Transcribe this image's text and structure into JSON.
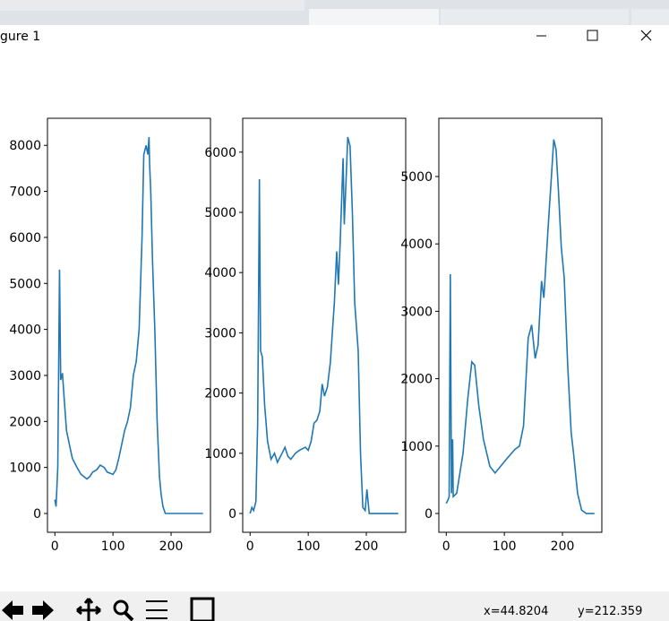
{
  "window": {
    "title": "gure 1",
    "status_x": "x=44.8204",
    "status_y": "y=212.359"
  },
  "chart_data": [
    {
      "type": "line",
      "color": "#1f77b4",
      "x": [
        0,
        2,
        5,
        8,
        10,
        13,
        16,
        20,
        25,
        30,
        38,
        45,
        50,
        55,
        60,
        65,
        72,
        78,
        85,
        90,
        100,
        105,
        110,
        115,
        120,
        125,
        130,
        135,
        140,
        145,
        150,
        153,
        157,
        160,
        162,
        163,
        165,
        168,
        172,
        176,
        180,
        183,
        186,
        190,
        193,
        255
      ],
      "values": [
        300,
        150,
        1000,
        5300,
        2900,
        3050,
        2500,
        1800,
        1500,
        1200,
        1000,
        850,
        800,
        750,
        800,
        900,
        950,
        1050,
        1000,
        900,
        850,
        950,
        1200,
        1500,
        1800,
        2000,
        2300,
        3000,
        3300,
        4000,
        6000,
        7800,
        8000,
        7800,
        8180,
        7600,
        7000,
        5500,
        4000,
        2000,
        800,
        400,
        150,
        0,
        0,
        0
      ],
      "xlim": [
        -12.75,
        267.75
      ],
      "xticks": [
        0,
        100,
        200
      ],
      "ylim": [
        -409,
        8589
      ],
      "yticks": [
        0,
        1000,
        2000,
        3000,
        4000,
        5000,
        6000,
        7000,
        8000
      ]
    },
    {
      "type": "line",
      "color": "#1f77b4",
      "x": [
        0,
        3,
        6,
        10,
        13,
        16,
        18,
        21,
        25,
        30,
        36,
        42,
        47,
        55,
        60,
        65,
        70,
        78,
        85,
        95,
        100,
        105,
        110,
        115,
        120,
        124,
        128,
        133,
        138,
        145,
        149,
        152,
        155,
        160,
        162,
        165,
        168,
        172,
        176,
        180,
        186,
        190,
        194,
        198,
        201,
        205,
        255
      ],
      "values": [
        0,
        100,
        50,
        200,
        1500,
        5550,
        2700,
        2600,
        1800,
        1200,
        900,
        1000,
        850,
        1000,
        1100,
        950,
        900,
        1000,
        1050,
        1100,
        1050,
        1200,
        1500,
        1550,
        1700,
        2150,
        1950,
        2100,
        2500,
        3500,
        4350,
        3800,
        4500,
        5900,
        4800,
        5500,
        6250,
        6100,
        5000,
        3500,
        2700,
        1000,
        100,
        50,
        400,
        0,
        0
      ],
      "xlim": [
        -12.75,
        267.75
      ],
      "xticks": [
        0,
        100,
        200
      ],
      "ylim": [
        -312,
        6562
      ],
      "yticks": [
        0,
        1000,
        2000,
        3000,
        4000,
        5000,
        6000
      ]
    },
    {
      "type": "line",
      "color": "#1f77b4",
      "x": [
        0,
        3,
        5,
        7,
        9,
        11,
        12,
        18,
        29,
        37,
        44,
        49,
        56,
        64,
        75,
        84,
        103,
        118,
        126,
        133,
        141,
        147,
        153,
        158,
        164,
        168,
        175,
        181,
        185,
        189,
        193,
        198,
        203,
        209,
        215,
        219,
        226,
        233,
        241,
        255
      ],
      "values": [
        150,
        200,
        250,
        3550,
        300,
        1100,
        250,
        300,
        900,
        1700,
        2250,
        2200,
        1600,
        1100,
        700,
        600,
        800,
        950,
        1000,
        1300,
        2600,
        2800,
        2300,
        2500,
        3450,
        3200,
        4200,
        5000,
        5550,
        5400,
        4800,
        3950,
        3500,
        2200,
        1200,
        900,
        300,
        50,
        0,
        0
      ],
      "xlim": [
        -12.75,
        267.75
      ],
      "xticks": [
        0,
        100,
        200
      ],
      "ylim": [
        -279,
        5864
      ],
      "yticks": [
        0,
        1000,
        2000,
        3000,
        4000,
        5000
      ]
    }
  ]
}
